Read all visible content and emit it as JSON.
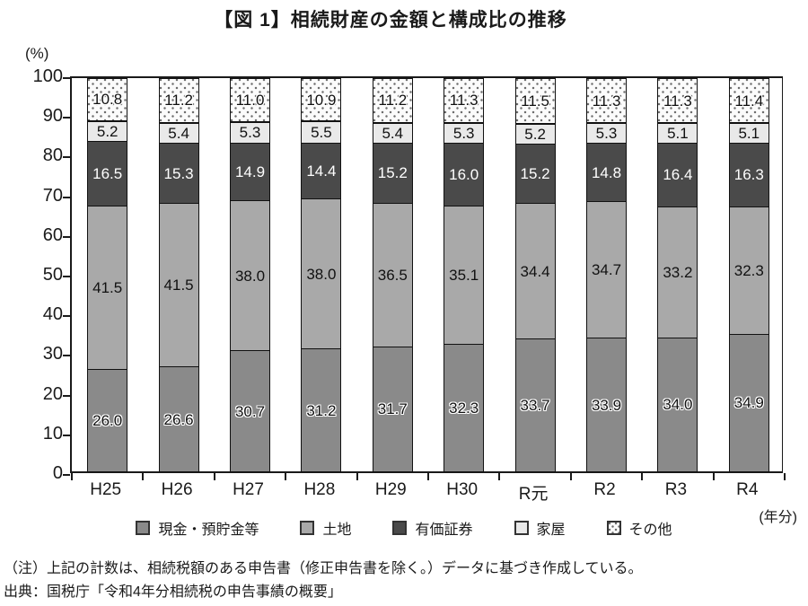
{
  "title": "【図 1】相続財産の金額と構成比の推移",
  "y_axis_unit": "(%)",
  "x_axis_unit": "(年分)",
  "chart_data": {
    "type": "bar",
    "stacked": true,
    "title": "【図 1】相続財産の金額と構成比の推移",
    "xlabel": "年分",
    "ylabel": "%",
    "ylim": [
      0,
      100
    ],
    "yticks": [
      0,
      10,
      20,
      30,
      40,
      50,
      60,
      70,
      80,
      90,
      100
    ],
    "grid": false,
    "legend_position": "bottom",
    "categories": [
      "H25",
      "H26",
      "H27",
      "H28",
      "H29",
      "H30",
      "R元",
      "R2",
      "R3",
      "R4"
    ],
    "series": [
      {
        "name": "現金・預貯金等",
        "color": "#8a8a8a",
        "pattern": "solid",
        "label_style": "halo",
        "values": [
          26.0,
          26.6,
          30.7,
          31.2,
          31.7,
          32.3,
          33.7,
          33.9,
          34.0,
          34.9
        ]
      },
      {
        "name": "土地",
        "color": "#a9a9a9",
        "pattern": "solid",
        "label_style": "dark",
        "values": [
          41.5,
          41.5,
          38.0,
          38.0,
          36.5,
          35.1,
          34.4,
          34.7,
          33.2,
          32.3
        ]
      },
      {
        "name": "有価証券",
        "color": "#4a4a4a",
        "pattern": "solid",
        "label_style": "light",
        "values": [
          16.5,
          15.3,
          14.9,
          14.4,
          15.2,
          16.0,
          15.2,
          14.8,
          16.4,
          16.3
        ]
      },
      {
        "name": "家屋",
        "color": "#e9e9e9",
        "pattern": "solid",
        "label_style": "dark",
        "values": [
          5.2,
          5.4,
          5.3,
          5.5,
          5.4,
          5.3,
          5.2,
          5.3,
          5.1,
          5.1
        ]
      },
      {
        "name": "その他",
        "color": "#fbfbfb",
        "pattern": "dots",
        "label_style": "halo",
        "values": [
          10.8,
          11.2,
          11.0,
          10.9,
          11.2,
          11.3,
          11.5,
          11.3,
          11.3,
          11.4
        ]
      }
    ]
  },
  "notes": {
    "note": "（注）上記の計数は、相続税額のある申告書（修正申告書を除く。）データに基づき作成している。",
    "source": "出典：国税庁「令和4年分相続税の申告事績の概要」"
  }
}
